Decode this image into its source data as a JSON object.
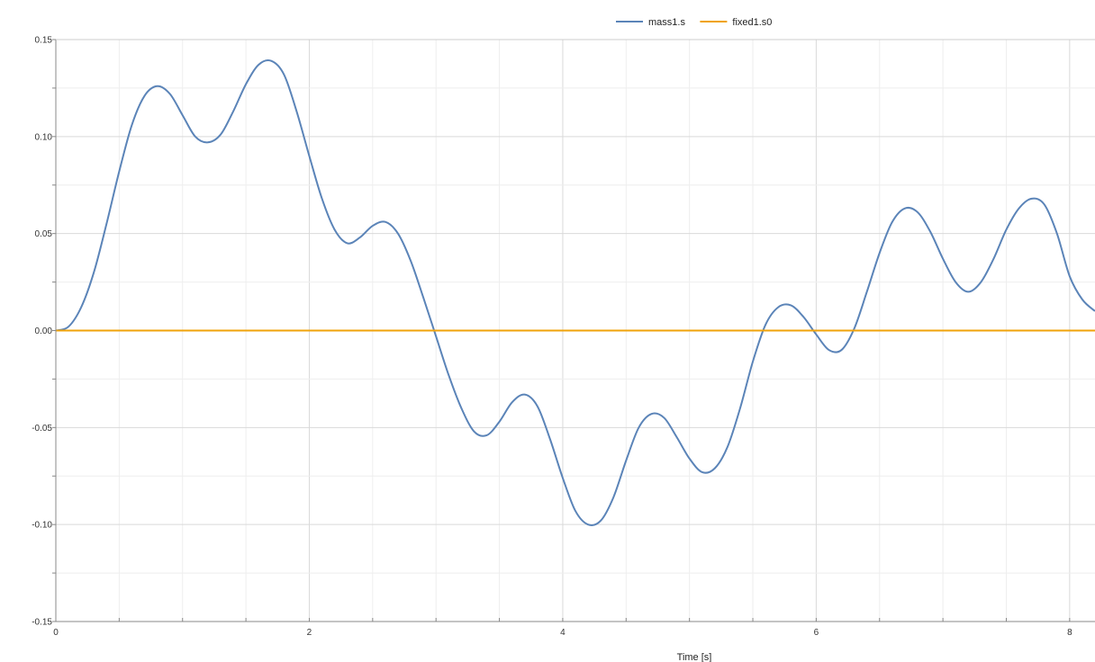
{
  "chart_data": {
    "type": "line",
    "xlabel": "Time [s]",
    "ylabel": "",
    "xlim": [
      0,
      8.2
    ],
    "ylim": [
      -0.15,
      0.15
    ],
    "grid": true,
    "legend_placement": "top-center",
    "x_ticks": [
      0,
      2,
      4,
      6,
      8
    ],
    "x_tick_labels": [
      "0",
      "2",
      "4",
      "6",
      "8"
    ],
    "y_ticks": [
      -0.15,
      -0.1,
      -0.05,
      0,
      0.05,
      0.1,
      0.15
    ],
    "y_tick_labels": [
      "-0.15",
      "-0.10",
      "-0.05",
      "0.00",
      "0.05",
      "0.10",
      "0.15"
    ],
    "series": [
      {
        "name": "mass1.s",
        "color": "#5b84b8",
        "x": [
          0,
          0.1,
          0.2,
          0.3,
          0.4,
          0.5,
          0.6,
          0.7,
          0.8,
          0.9,
          1.0,
          1.1,
          1.2,
          1.3,
          1.4,
          1.5,
          1.6,
          1.7,
          1.8,
          1.9,
          2.0,
          2.1,
          2.2,
          2.3,
          2.4,
          2.5,
          2.6,
          2.7,
          2.8,
          2.9,
          3.0,
          3.1,
          3.2,
          3.3,
          3.4,
          3.5,
          3.6,
          3.7,
          3.8,
          3.9,
          4.0,
          4.1,
          4.2,
          4.3,
          4.4,
          4.5,
          4.6,
          4.7,
          4.8,
          4.9,
          5.0,
          5.1,
          5.2,
          5.3,
          5.4,
          5.5,
          5.6,
          5.7,
          5.8,
          5.9,
          6.0,
          6.1,
          6.2,
          6.3,
          6.4,
          6.5,
          6.6,
          6.7,
          6.8,
          6.9,
          7.0,
          7.1,
          7.2,
          7.3,
          7.4,
          7.5,
          7.6,
          7.7,
          7.8,
          7.9,
          8.0,
          8.1,
          8.2
        ],
        "y": [
          0,
          0.002,
          0.012,
          0.03,
          0.055,
          0.082,
          0.106,
          0.121,
          0.126,
          0.122,
          0.111,
          0.1,
          0.097,
          0.101,
          0.113,
          0.127,
          0.137,
          0.139,
          0.132,
          0.113,
          0.09,
          0.068,
          0.052,
          0.045,
          0.048,
          0.054,
          0.056,
          0.05,
          0.036,
          0.017,
          -0.003,
          -0.023,
          -0.04,
          -0.052,
          -0.054,
          -0.047,
          -0.037,
          -0.033,
          -0.039,
          -0.056,
          -0.076,
          -0.093,
          -0.1,
          -0.098,
          -0.086,
          -0.067,
          -0.05,
          -0.043,
          -0.045,
          -0.055,
          -0.066,
          -0.073,
          -0.071,
          -0.06,
          -0.04,
          -0.016,
          0.003,
          0.012,
          0.013,
          0.007,
          -0.002,
          -0.01,
          -0.01,
          0.001,
          0.02,
          0.04,
          0.056,
          0.063,
          0.061,
          0.051,
          0.037,
          0.025,
          0.02,
          0.025,
          0.037,
          0.052,
          0.063,
          0.068,
          0.065,
          0.05,
          0.028,
          0.016,
          0.01
        ]
      },
      {
        "name": "fixed1.s0",
        "color": "#f0a30a",
        "x": [
          0,
          8.2
        ],
        "y": [
          0,
          0
        ]
      }
    ]
  }
}
